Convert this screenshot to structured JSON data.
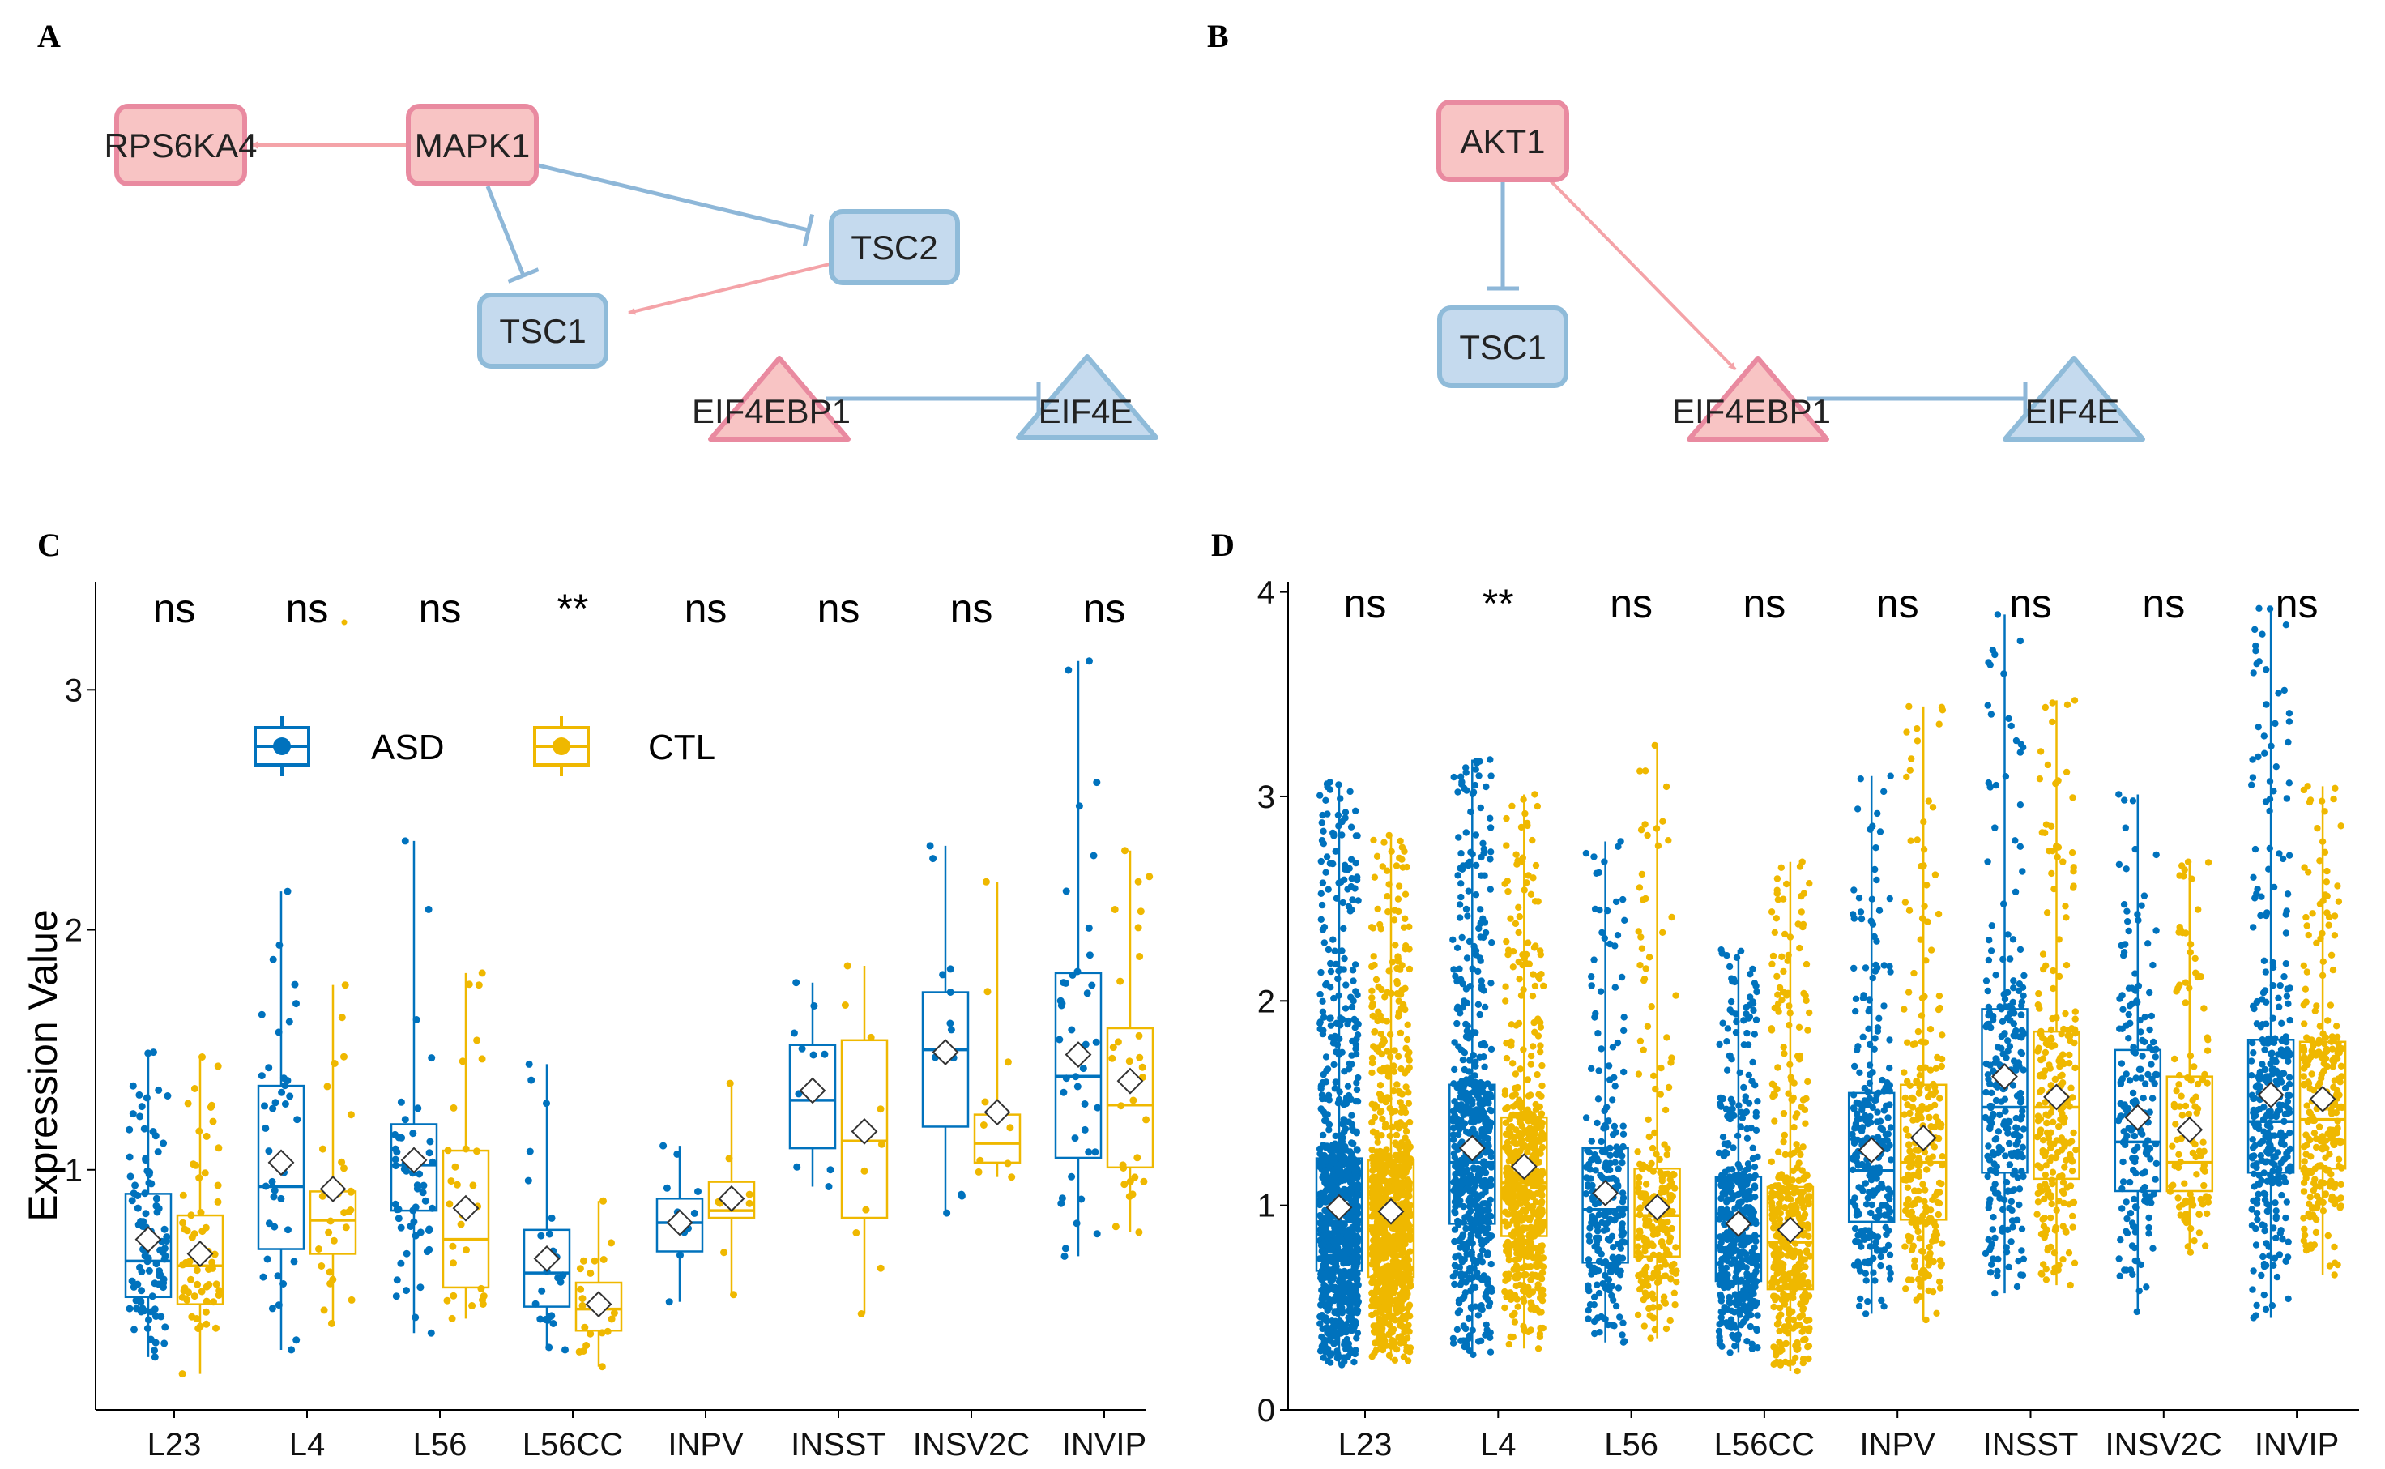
{
  "colors": {
    "asd": "#0072BD",
    "ctl": "#EFB800",
    "activate": "#F4A3A8",
    "inhibit": "#8EB7D8",
    "up_fill": "#F8C4C4",
    "up_stroke": "#E98AA0",
    "down_fill": "#C5DAEE",
    "down_stroke": "#8FBBD9"
  },
  "networks": [
    {
      "id": "A",
      "letter": "A",
      "nodes": [
        {
          "id": "RPS6KA4",
          "label": "RPS6KA4",
          "shape": "box",
          "group": "up"
        },
        {
          "id": "MAPK1",
          "label": "MAPK1",
          "shape": "box",
          "group": "up"
        },
        {
          "id": "TSC2",
          "label": "TSC2",
          "shape": "box",
          "group": "down"
        },
        {
          "id": "TSC1",
          "label": "TSC1",
          "shape": "box",
          "group": "down"
        },
        {
          "id": "EIF4EBP1",
          "label": "EIF4EBP1",
          "shape": "triangle",
          "group": "up"
        },
        {
          "id": "EIF4E",
          "label": "EIF4E",
          "shape": "triangle",
          "group": "down"
        }
      ],
      "edges": [
        {
          "from": "MAPK1",
          "to": "RPS6KA4",
          "type": "activation"
        },
        {
          "from": "MAPK1",
          "to": "TSC1",
          "type": "inhibition"
        },
        {
          "from": "MAPK1",
          "to": "TSC2",
          "type": "inhibition"
        },
        {
          "from": "TSC2",
          "to": "TSC1",
          "type": "activation"
        },
        {
          "from": "EIF4EBP1",
          "to": "EIF4E",
          "type": "inhibition"
        }
      ]
    },
    {
      "id": "B",
      "letter": "B",
      "nodes": [
        {
          "id": "AKT1",
          "label": "AKT1",
          "shape": "box",
          "group": "up"
        },
        {
          "id": "TSC1",
          "label": "TSC1",
          "shape": "box",
          "group": "down"
        },
        {
          "id": "EIF4EBP1",
          "label": "EIF4EBP1",
          "shape": "triangle",
          "group": "up"
        },
        {
          "id": "EIF4E",
          "label": "EIF4E",
          "shape": "triangle",
          "group": "down"
        }
      ],
      "edges": [
        {
          "from": "AKT1",
          "to": "TSC1",
          "type": "inhibition"
        },
        {
          "from": "AKT1",
          "to": "EIF4EBP1",
          "type": "activation"
        },
        {
          "from": "EIF4EBP1",
          "to": "EIF4E",
          "type": "inhibition"
        }
      ]
    }
  ],
  "chart_data": [
    {
      "id": "C",
      "letter": "C",
      "type": "box",
      "ylabel": "Expression Value",
      "ylim": [
        0.0,
        3.45
      ],
      "yticks": [
        1,
        2,
        3
      ],
      "tick_labels": [
        "1",
        "2",
        "3"
      ],
      "categories": [
        "L23",
        "L4",
        "L56",
        "L56CC",
        "INPV",
        "INSST",
        "INSV2C",
        "INVIP"
      ],
      "significance": [
        "ns",
        "ns",
        "ns",
        "**",
        "ns",
        "ns",
        "ns",
        "ns"
      ],
      "legend": {
        "position": "top-left",
        "entries": [
          "ASD",
          "CTL"
        ]
      },
      "points_per_box": [
        95,
        60,
        40,
        30,
        55,
        30,
        25,
        20,
        10,
        8,
        10,
        10,
        12,
        10,
        40,
        30
      ],
      "series": [
        {
          "name": "ASD",
          "boxes": [
            {
              "q1": 0.47,
              "median": 0.62,
              "q3": 0.9,
              "low": 0.22,
              "high": 1.49,
              "mean": 0.71
            },
            {
              "q1": 0.67,
              "median": 0.93,
              "q3": 1.35,
              "low": 0.25,
              "high": 2.16,
              "mean": 1.03
            },
            {
              "q1": 0.83,
              "median": 1.02,
              "q3": 1.19,
              "low": 0.32,
              "high": 2.37,
              "mean": 1.04
            },
            {
              "q1": 0.43,
              "median": 0.57,
              "q3": 0.75,
              "low": 0.25,
              "high": 1.44,
              "mean": 0.63
            },
            {
              "q1": 0.66,
              "median": 0.78,
              "q3": 0.88,
              "low": 0.45,
              "high": 1.1,
              "mean": 0.78
            },
            {
              "q1": 1.09,
              "median": 1.29,
              "q3": 1.52,
              "low": 0.93,
              "high": 1.78,
              "mean": 1.33
            },
            {
              "q1": 1.18,
              "median": 1.5,
              "q3": 1.74,
              "low": 0.82,
              "high": 2.35,
              "mean": 1.49
            },
            {
              "q1": 1.05,
              "median": 1.39,
              "q3": 1.82,
              "low": 0.64,
              "high": 3.12,
              "mean": 1.48
            }
          ]
        },
        {
          "name": "CTL",
          "boxes": [
            {
              "q1": 0.44,
              "median": 0.6,
              "q3": 0.81,
              "low": 0.15,
              "high": 1.47,
              "mean": 0.65
            },
            {
              "q1": 0.65,
              "median": 0.79,
              "q3": 0.91,
              "low": 0.36,
              "high": 1.77,
              "mean": 0.92
            },
            {
              "q1": 0.51,
              "median": 0.71,
              "q3": 1.08,
              "low": 0.38,
              "high": 1.82,
              "mean": 0.84
            },
            {
              "q1": 0.33,
              "median": 0.42,
              "q3": 0.53,
              "low": 0.18,
              "high": 0.87,
              "mean": 0.44
            },
            {
              "q1": 0.8,
              "median": 0.83,
              "q3": 0.95,
              "low": 0.48,
              "high": 1.36,
              "mean": 0.88
            },
            {
              "q1": 0.8,
              "median": 1.12,
              "q3": 1.54,
              "low": 0.4,
              "high": 1.85,
              "mean": 1.16
            },
            {
              "q1": 1.03,
              "median": 1.11,
              "q3": 1.23,
              "low": 0.97,
              "high": 2.2,
              "mean": 1.24
            },
            {
              "q1": 1.01,
              "median": 1.27,
              "q3": 1.59,
              "low": 0.74,
              "high": 2.33,
              "mean": 1.37
            }
          ]
        }
      ]
    },
    {
      "id": "D",
      "letter": "D",
      "type": "box",
      "ylabel": "",
      "ylim": [
        0.0,
        4.05
      ],
      "yticks": [
        0,
        1,
        2,
        3,
        4
      ],
      "tick_labels": [
        "0",
        "1",
        "2",
        "3",
        "4"
      ],
      "categories": [
        "L23",
        "L4",
        "L56",
        "L56CC",
        "INPV",
        "INSST",
        "INSV2C",
        "INVIP"
      ],
      "significance": [
        "ns",
        "**",
        "ns",
        "ns",
        "ns",
        "ns",
        "ns",
        "ns"
      ],
      "points_per_box": [
        900,
        900,
        600,
        550,
        250,
        220,
        450,
        420,
        260,
        240,
        260,
        240,
        180,
        110,
        330,
        260
      ],
      "series": [
        {
          "name": "ASD",
          "boxes": [
            {
              "q1": 0.68,
              "median": 0.92,
              "q3": 1.23,
              "low": 0.22,
              "high": 3.07,
              "mean": 0.99
            },
            {
              "q1": 0.91,
              "median": 1.21,
              "q3": 1.59,
              "low": 0.27,
              "high": 3.18,
              "mean": 1.28
            },
            {
              "q1": 0.72,
              "median": 0.98,
              "q3": 1.28,
              "low": 0.33,
              "high": 2.78,
              "mean": 1.06
            },
            {
              "q1": 0.63,
              "median": 0.85,
              "q3": 1.14,
              "low": 0.28,
              "high": 2.25,
              "mean": 0.91
            },
            {
              "q1": 0.92,
              "median": 1.17,
              "q3": 1.55,
              "low": 0.47,
              "high": 3.1,
              "mean": 1.27
            },
            {
              "q1": 1.16,
              "median": 1.48,
              "q3": 1.96,
              "low": 0.57,
              "high": 3.89,
              "mean": 1.63
            },
            {
              "q1": 1.07,
              "median": 1.31,
              "q3": 1.76,
              "low": 0.48,
              "high": 3.01,
              "mean": 1.43
            },
            {
              "q1": 1.16,
              "median": 1.41,
              "q3": 1.81,
              "low": 0.45,
              "high": 3.92,
              "mean": 1.54
            }
          ]
        },
        {
          "name": "CTL",
          "boxes": [
            {
              "q1": 0.65,
              "median": 0.9,
              "q3": 1.22,
              "low": 0.24,
              "high": 2.81,
              "mean": 0.97
            },
            {
              "q1": 0.85,
              "median": 1.11,
              "q3": 1.43,
              "low": 0.3,
              "high": 3.01,
              "mean": 1.19
            },
            {
              "q1": 0.75,
              "median": 0.95,
              "q3": 1.18,
              "low": 0.35,
              "high": 3.25,
              "mean": 0.99
            },
            {
              "q1": 0.59,
              "median": 0.82,
              "q3": 1.09,
              "low": 0.19,
              "high": 2.68,
              "mean": 0.88
            },
            {
              "q1": 0.93,
              "median": 1.21,
              "q3": 1.59,
              "low": 0.44,
              "high": 3.44,
              "mean": 1.33
            },
            {
              "q1": 1.13,
              "median": 1.48,
              "q3": 1.85,
              "low": 0.61,
              "high": 3.47,
              "mean": 1.53
            },
            {
              "q1": 1.07,
              "median": 1.21,
              "q3": 1.63,
              "low": 0.77,
              "high": 2.68,
              "mean": 1.37
            },
            {
              "q1": 1.18,
              "median": 1.42,
              "q3": 1.8,
              "low": 0.66,
              "high": 3.05,
              "mean": 1.52
            }
          ]
        }
      ]
    }
  ]
}
